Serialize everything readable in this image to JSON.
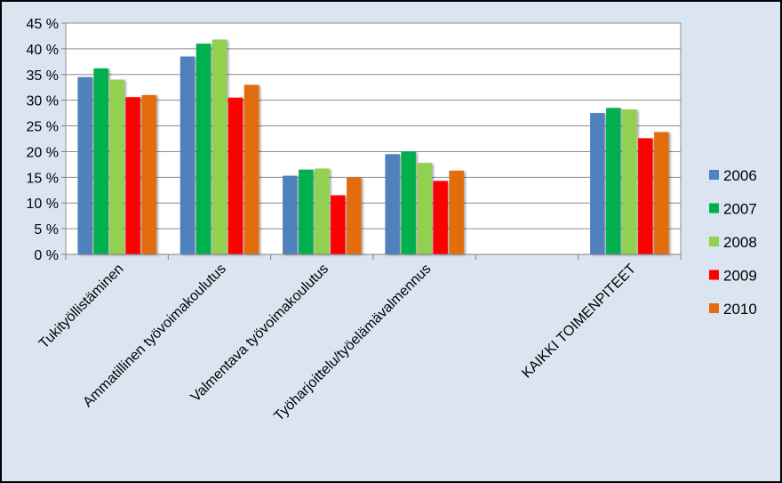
{
  "chart_data": {
    "type": "bar",
    "title": "",
    "xlabel": "",
    "ylabel": "",
    "ylim": [
      0,
      45
    ],
    "y_ticks": [
      "0 %",
      "5 %",
      "10 %",
      "15 %",
      "20 %",
      "25 %",
      "30 %",
      "35 %",
      "40 %",
      "45 %"
    ],
    "categories": [
      "Tukityöllistäminen",
      "Ammatillinen työvoimakoulutus",
      "Valmentava työvoimakoulutus",
      "Työharjoittelu/työelämävalmennus",
      "",
      "KAIKKI TOIMENPITEET"
    ],
    "series": [
      {
        "name": "2006",
        "color": "#4f81bd",
        "values": [
          34.5,
          38.5,
          15.3,
          19.5,
          null,
          27.5
        ]
      },
      {
        "name": "2007",
        "color": "#00b050",
        "values": [
          36.2,
          41.0,
          16.5,
          20.0,
          null,
          28.5
        ]
      },
      {
        "name": "2008",
        "color": "#92d050",
        "values": [
          34.0,
          41.8,
          16.7,
          17.8,
          null,
          28.2
        ]
      },
      {
        "name": "2009",
        "color": "#ff0000",
        "values": [
          30.6,
          30.5,
          11.5,
          14.3,
          null,
          22.6
        ]
      },
      {
        "name": "2010",
        "color": "#e36c09",
        "values": [
          31.0,
          33.0,
          15.0,
          16.3,
          null,
          23.8
        ]
      }
    ],
    "grid": true,
    "legend_position": "right"
  }
}
